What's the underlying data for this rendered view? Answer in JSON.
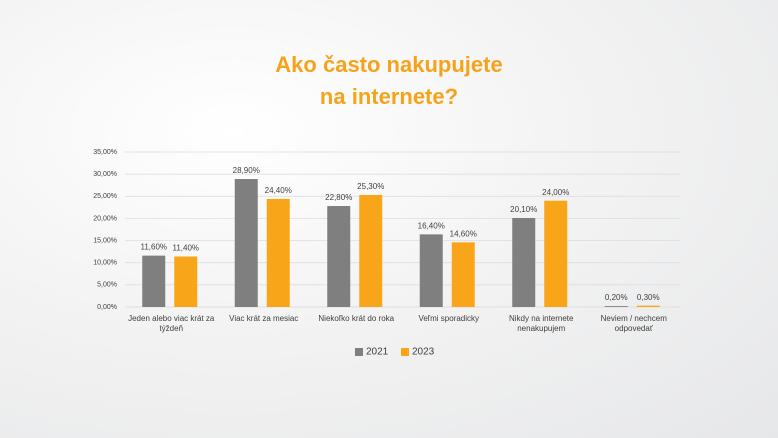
{
  "chart_data": {
    "type": "bar",
    "title": "Ako často nakupujete na internete?",
    "categories": [
      "Jeden alebo viac krát za týždeň",
      "Viac krát za mesiac",
      "Niekoľko krát do roka",
      "Veľmi sporadicky",
      "Nikdy na internete nenakupujem",
      "Neviem / nechcem odpovedať"
    ],
    "series": [
      {
        "name": "2021",
        "color": "#7f7f7f",
        "values": [
          11.6,
          28.9,
          22.8,
          16.4,
          20.1,
          0.2
        ],
        "value_labels": [
          "11,60%",
          "28,90%",
          "22,80%",
          "16,40%",
          "20,10%",
          "0,20%"
        ]
      },
      {
        "name": "2023",
        "color": "#f9a51a",
        "values": [
          11.4,
          24.4,
          25.3,
          14.6,
          24.0,
          0.3
        ],
        "value_labels": [
          "11,40%",
          "24,40%",
          "25,30%",
          "14,60%",
          "24,00%",
          "0,30%"
        ]
      }
    ],
    "ylim": [
      0,
      35
    ],
    "yticks": [
      {
        "value": 0,
        "label": "0,00%"
      },
      {
        "value": 5,
        "label": "5,00%"
      },
      {
        "value": 10,
        "label": "10,00%"
      },
      {
        "value": 15,
        "label": "15,00%"
      },
      {
        "value": 20,
        "label": "20,00%"
      },
      {
        "value": 25,
        "label": "25,00%"
      },
      {
        "value": 30,
        "label": "30,00%"
      },
      {
        "value": 35,
        "label": "35,00%"
      }
    ],
    "grid": true,
    "legend": "bottom"
  }
}
